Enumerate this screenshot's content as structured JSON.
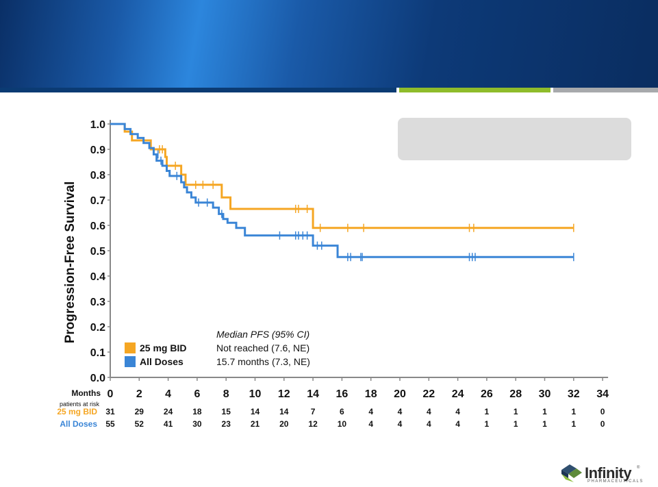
{
  "chart_data": {
    "type": "line",
    "subtype": "kaplan-meier",
    "ylabel": "Progression-Free Survival",
    "xlabel": "Months",
    "xlim": [
      0,
      34
    ],
    "ylim": [
      0,
      1.0
    ],
    "x_ticks": [
      "0",
      "2",
      "4",
      "6",
      "8",
      "10",
      "12",
      "14",
      "16",
      "18",
      "20",
      "22",
      "24",
      "26",
      "28",
      "30",
      "32",
      "34"
    ],
    "y_ticks": [
      "0.0",
      "0.1",
      "0.2",
      "0.3",
      "0.4",
      "0.5",
      "0.6",
      "0.7",
      "0.8",
      "0.9",
      "1.0"
    ],
    "legend_title": "Median PFS (95% CI)",
    "series": [
      {
        "name": "25 mg BID",
        "color": "#f5a623",
        "median_text": "Not reached (7.6, NE)",
        "steps": [
          [
            0,
            1.0
          ],
          [
            1.0,
            0.97
          ],
          [
            1.5,
            0.935
          ],
          [
            2.8,
            0.9
          ],
          [
            3.8,
            0.87
          ],
          [
            3.9,
            0.835
          ],
          [
            4.9,
            0.8
          ],
          [
            5.2,
            0.76
          ],
          [
            7.7,
            0.71
          ],
          [
            8.3,
            0.665
          ],
          [
            14.0,
            0.59
          ],
          [
            32.0,
            0.59
          ]
        ],
        "censors": [
          [
            3.4,
            0.9
          ],
          [
            3.6,
            0.9
          ],
          [
            4.5,
            0.835
          ],
          [
            5.9,
            0.76
          ],
          [
            6.4,
            0.76
          ],
          [
            7.1,
            0.76
          ],
          [
            12.8,
            0.665
          ],
          [
            13.0,
            0.665
          ],
          [
            13.6,
            0.665
          ],
          [
            14.5,
            0.59
          ],
          [
            16.4,
            0.59
          ],
          [
            17.5,
            0.59
          ],
          [
            24.8,
            0.59
          ],
          [
            25.1,
            0.59
          ],
          [
            32.0,
            0.59
          ]
        ]
      },
      {
        "name": "All Doses",
        "color": "#3a85d6",
        "median_text": "15.7 months (7.3, NE)",
        "steps": [
          [
            0,
            1.0
          ],
          [
            1.0,
            0.98
          ],
          [
            1.4,
            0.96
          ],
          [
            1.9,
            0.945
          ],
          [
            2.3,
            0.925
          ],
          [
            2.7,
            0.905
          ],
          [
            3.0,
            0.88
          ],
          [
            3.2,
            0.855
          ],
          [
            3.6,
            0.835
          ],
          [
            3.9,
            0.815
          ],
          [
            4.1,
            0.795
          ],
          [
            4.9,
            0.77
          ],
          [
            5.1,
            0.75
          ],
          [
            5.3,
            0.73
          ],
          [
            5.6,
            0.71
          ],
          [
            5.9,
            0.69
          ],
          [
            7.1,
            0.67
          ],
          [
            7.5,
            0.645
          ],
          [
            7.8,
            0.625
          ],
          [
            8.1,
            0.61
          ],
          [
            8.7,
            0.59
          ],
          [
            9.3,
            0.56
          ],
          [
            14.0,
            0.52
          ],
          [
            15.7,
            0.475
          ],
          [
            32.0,
            0.475
          ]
        ],
        "censors": [
          [
            3.3,
            0.88
          ],
          [
            3.5,
            0.855
          ],
          [
            4.6,
            0.795
          ],
          [
            6.1,
            0.69
          ],
          [
            6.7,
            0.69
          ],
          [
            7.7,
            0.645
          ],
          [
            11.7,
            0.56
          ],
          [
            12.8,
            0.56
          ],
          [
            13.0,
            0.56
          ],
          [
            13.3,
            0.56
          ],
          [
            13.6,
            0.56
          ],
          [
            14.3,
            0.52
          ],
          [
            14.6,
            0.52
          ],
          [
            16.4,
            0.475
          ],
          [
            16.6,
            0.475
          ],
          [
            17.3,
            0.475
          ],
          [
            17.4,
            0.475
          ],
          [
            24.8,
            0.475
          ],
          [
            25.0,
            0.475
          ],
          [
            25.2,
            0.475
          ],
          [
            32.0,
            0.475
          ]
        ]
      }
    ],
    "risk_table": {
      "title": "patients at risk",
      "rows": [
        {
          "label": "25 mg BID",
          "color": "#f5a623",
          "values": [
            "31",
            "29",
            "24",
            "18",
            "15",
            "14",
            "14",
            "7",
            "6",
            "4",
            "4",
            "4",
            "4",
            "1",
            "1",
            "1",
            "1",
            "0"
          ]
        },
        {
          "label": "All Doses",
          "color": "#3a85d6",
          "values": [
            "55",
            "52",
            "41",
            "30",
            "23",
            "21",
            "20",
            "12",
            "10",
            "4",
            "4",
            "4",
            "4",
            "1",
            "1",
            "1",
            "1",
            "0"
          ]
        }
      ]
    }
  },
  "logo": {
    "name": "Infinity",
    "tm": "®",
    "sub": "PHARMACEUTICALS"
  },
  "colors": {
    "banner_dark": "#0a2f66",
    "accent_green": "#8fbc2b",
    "accent_gray": "#a7a9ac"
  }
}
